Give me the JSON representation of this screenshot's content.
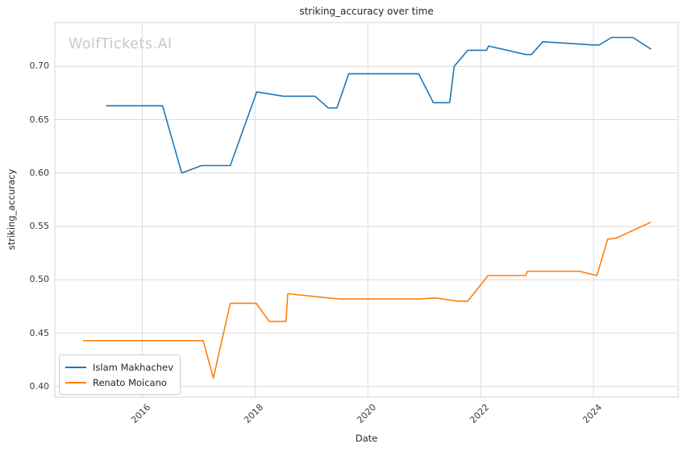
{
  "chart": {
    "title": "striking_accuracy over time",
    "watermark": "WolfTickets.AI",
    "xlabel": "Date",
    "ylabel": "striking_accuracy"
  },
  "chart_data": {
    "type": "line",
    "title": "striking_accuracy over time",
    "xlabel": "Date",
    "ylabel": "striking_accuracy",
    "watermark": "WolfTickets.AI",
    "grid": true,
    "legend_position": "lower left",
    "xlim": [
      2014.45,
      2025.5
    ],
    "ylim": [
      0.39,
      0.741
    ],
    "x_ticks": [
      {
        "value": 2016,
        "label": "2016"
      },
      {
        "value": 2018,
        "label": "2018"
      },
      {
        "value": 2020,
        "label": "2020"
      },
      {
        "value": 2022,
        "label": "2022"
      },
      {
        "value": 2024,
        "label": "2024"
      }
    ],
    "y_ticks": [
      {
        "value": 0.4,
        "label": "0.40"
      },
      {
        "value": 0.45,
        "label": "0.45"
      },
      {
        "value": 0.5,
        "label": "0.50"
      },
      {
        "value": 0.55,
        "label": "0.55"
      },
      {
        "value": 0.6,
        "label": "0.60"
      },
      {
        "value": 0.65,
        "label": "0.65"
      },
      {
        "value": 0.7,
        "label": "0.70"
      }
    ],
    "colors": {
      "grid": "#dcdcdc",
      "spine": "#d4d4d4",
      "title_text": "#262626",
      "tick_text": "#3b3b3b",
      "watermark": "#c9c9c9"
    },
    "series": [
      {
        "name": "Islam Makhachev",
        "color": "#1f77b4",
        "x": [
          2015.36,
          2016.36,
          2016.7,
          2017.05,
          2017.56,
          2018.03,
          2018.5,
          2019.06,
          2019.3,
          2019.45,
          2019.66,
          2020.9,
          2021.16,
          2021.45,
          2021.53,
          2021.77,
          2022.1,
          2022.14,
          2022.8,
          2022.9,
          2023.1,
          2024.0,
          2024.1,
          2024.32,
          2024.7,
          2025.02
        ],
        "y": [
          0.663,
          0.663,
          0.6,
          0.607,
          0.607,
          0.676,
          0.672,
          0.672,
          0.661,
          0.661,
          0.693,
          0.693,
          0.666,
          0.666,
          0.7,
          0.715,
          0.715,
          0.719,
          0.711,
          0.711,
          0.723,
          0.72,
          0.72,
          0.727,
          0.727,
          0.716
        ]
      },
      {
        "name": "Renato Moicano",
        "color": "#ff7f0e",
        "x": [
          2014.95,
          2017.08,
          2017.26,
          2017.56,
          2018.02,
          2018.25,
          2018.55,
          2018.58,
          2019.3,
          2019.5,
          2020.9,
          2021.2,
          2021.6,
          2021.77,
          2022.13,
          2022.8,
          2022.83,
          2023.75,
          2024.06,
          2024.25,
          2024.4,
          2025.02
        ],
        "y": [
          0.443,
          0.443,
          0.408,
          0.478,
          0.478,
          0.461,
          0.461,
          0.487,
          0.483,
          0.482,
          0.482,
          0.483,
          0.48,
          0.48,
          0.504,
          0.504,
          0.508,
          0.508,
          0.504,
          0.538,
          0.539,
          0.554
        ]
      }
    ]
  }
}
